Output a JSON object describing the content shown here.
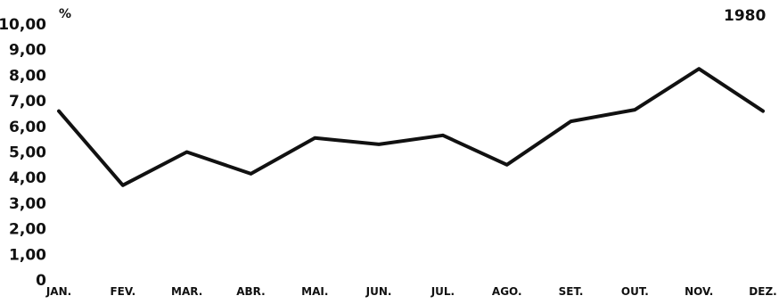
{
  "chart_data": {
    "type": "line",
    "year_label": "1980",
    "unit_label": "%",
    "categories": [
      "JAN.",
      "FEV.",
      "MAR.",
      "ABR.",
      "MAI.",
      "JUN.",
      "JUL.",
      "AGO.",
      "SET.",
      "OUT.",
      "NOV.",
      "DEZ."
    ],
    "values": [
      6.6,
      3.7,
      5.0,
      4.15,
      5.55,
      5.3,
      5.65,
      4.5,
      6.2,
      6.65,
      8.25,
      6.6
    ],
    "y_ticks": [
      "0",
      "1,00",
      "2,00",
      "3,00",
      "4,00",
      "5,00",
      "6,00",
      "7,00",
      "8,00",
      "9,00",
      "10,00"
    ],
    "ylim": [
      0,
      10
    ],
    "grid": false,
    "line_color": "#111111"
  }
}
